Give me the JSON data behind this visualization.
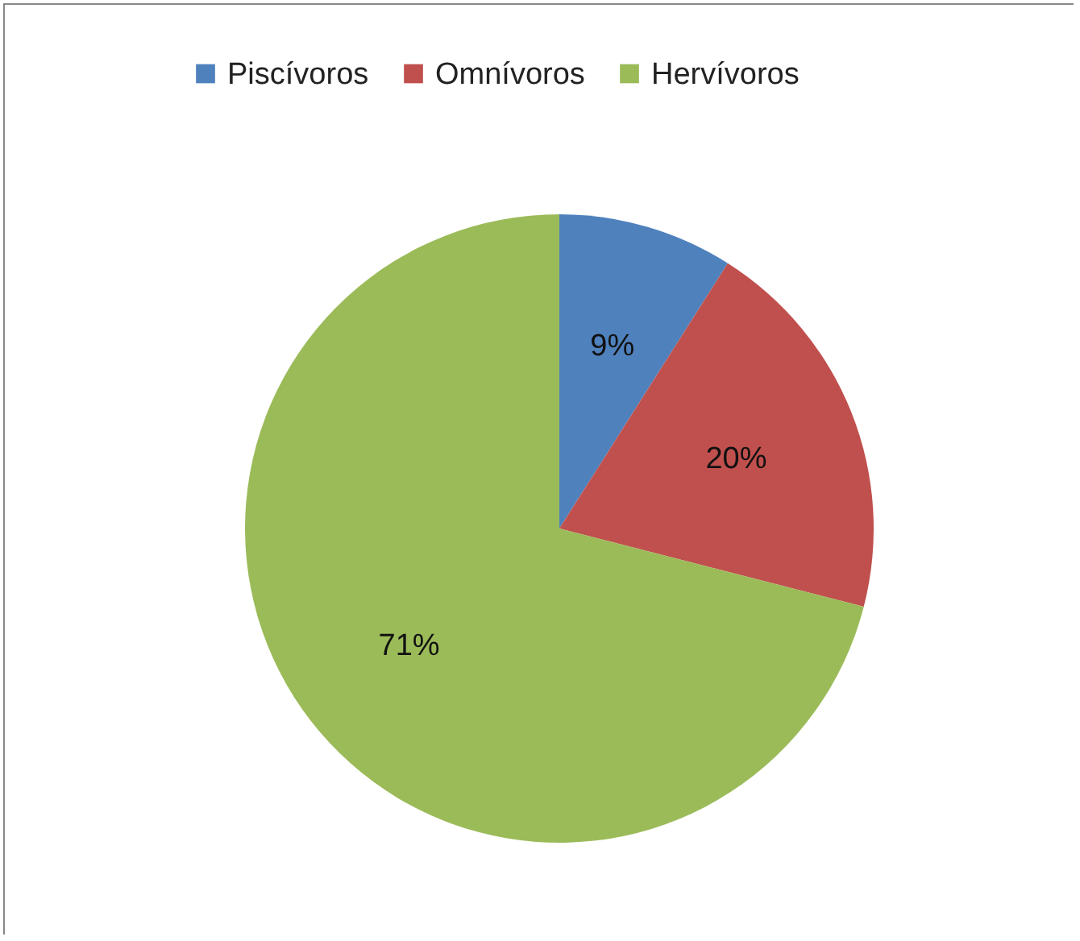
{
  "chart_data": {
    "type": "pie",
    "categories": [
      "Piscívoros",
      "Omnívoros",
      "Hervívoros"
    ],
    "values": [
      9,
      20,
      71
    ],
    "colors": [
      "#4f81bd",
      "#c0504d",
      "#9bbb59"
    ],
    "value_labels": [
      "9%",
      "20%",
      "71%"
    ],
    "legend": "top"
  }
}
